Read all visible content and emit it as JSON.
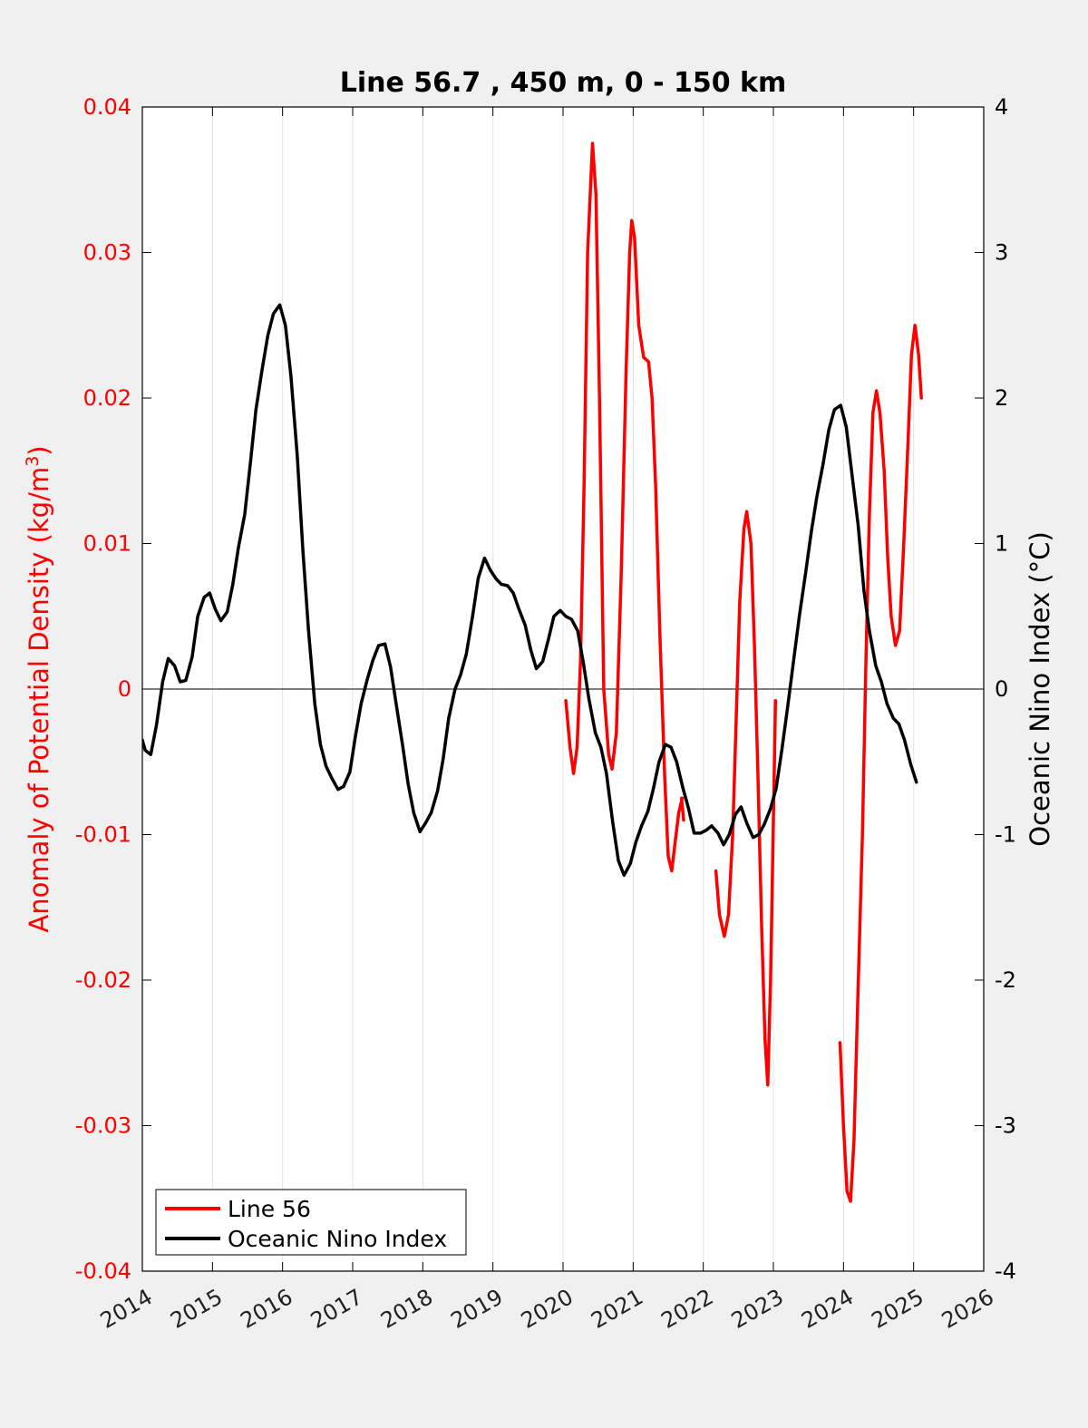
{
  "chart_data": {
    "type": "line",
    "title": "Line 56.7 , 450 m, 0 - 150 km",
    "ylabel_left": "Anomaly of Potential Density (kg/m",
    "ylabel_left_superscript": "3",
    "ylabel_left_close": ")",
    "ylabel_right": "Oceanic Nino Index (°C)",
    "xlim": [
      2014,
      2026
    ],
    "ylim_left": [
      -0.04,
      0.04
    ],
    "ylim_right": [
      -4,
      4
    ],
    "x_ticks": [
      2014,
      2015,
      2016,
      2017,
      2018,
      2019,
      2020,
      2021,
      2022,
      2023,
      2024,
      2025,
      2026
    ],
    "x_tick_labels": [
      "2014",
      "2015",
      "2016",
      "2017",
      "2018",
      "2019",
      "2020",
      "2021",
      "2022",
      "2023",
      "2024",
      "2025",
      "2026"
    ],
    "y_left_ticks": [
      -0.04,
      -0.03,
      -0.02,
      -0.01,
      0,
      0.01,
      0.02,
      0.03,
      0.04
    ],
    "y_left_tick_labels": [
      "-0.04",
      "-0.03",
      "-0.02",
      "-0.01",
      "0",
      "0.01",
      "0.02",
      "0.03",
      "0.04"
    ],
    "y_right_ticks": [
      -4,
      -3,
      -2,
      -1,
      0,
      1,
      2,
      3,
      4
    ],
    "y_right_tick_labels": [
      "-4",
      "-3",
      "-2",
      "-1",
      "0",
      "1",
      "2",
      "3",
      "4"
    ],
    "grid": "vertical",
    "legend_position": "bottom-left",
    "colors": {
      "line56": "#ff0000",
      "oni": "#000000",
      "left_axis": "#ff0000",
      "right_axis": "#000000"
    },
    "series": [
      {
        "name": "Line 56",
        "axis": "left",
        "segments": [
          [
            [
              2020.04,
              -0.0008
            ],
            [
              2020.1,
              -0.004
            ],
            [
              2020.15,
              -0.0058
            ],
            [
              2020.2,
              -0.004
            ],
            [
              2020.25,
              0.002
            ],
            [
              2020.3,
              0.014
            ],
            [
              2020.35,
              0.03
            ],
            [
              2020.42,
              0.0375
            ],
            [
              2020.47,
              0.034
            ],
            [
              2020.52,
              0.02
            ],
            [
              2020.58,
              0.0
            ],
            [
              2020.65,
              -0.0045
            ],
            [
              2020.7,
              -0.0055
            ],
            [
              2020.76,
              -0.003
            ],
            [
              2020.83,
              0.008
            ],
            [
              2020.9,
              0.022
            ],
            [
              2020.95,
              0.03
            ],
            [
              2020.98,
              0.0322
            ],
            [
              2021.02,
              0.031
            ],
            [
              2021.08,
              0.025
            ],
            [
              2021.15,
              0.0228
            ],
            [
              2021.22,
              0.0225
            ],
            [
              2021.27,
              0.02
            ],
            [
              2021.32,
              0.014
            ],
            [
              2021.38,
              0.004
            ],
            [
              2021.45,
              -0.006
            ],
            [
              2021.5,
              -0.0115
            ],
            [
              2021.55,
              -0.0125
            ],
            [
              2021.6,
              -0.0105
            ],
            [
              2021.65,
              -0.0085
            ],
            [
              2021.7,
              -0.0075
            ]
          ],
          [
            [
              2021.69,
              -0.0075
            ],
            [
              2021.72,
              -0.009
            ]
          ],
          [
            [
              2022.18,
              -0.0125
            ],
            [
              2022.23,
              -0.0155
            ],
            [
              2022.3,
              -0.017
            ],
            [
              2022.36,
              -0.0155
            ],
            [
              2022.42,
              -0.01
            ],
            [
              2022.47,
              -0.002
            ],
            [
              2022.52,
              0.006
            ],
            [
              2022.58,
              0.011
            ],
            [
              2022.62,
              0.0122
            ],
            [
              2022.68,
              0.01
            ],
            [
              2022.73,
              0.003
            ],
            [
              2022.78,
              -0.006
            ],
            [
              2022.83,
              -0.016
            ],
            [
              2022.88,
              -0.024
            ],
            [
              2022.92,
              -0.0272
            ],
            [
              2022.96,
              -0.02
            ],
            [
              2023.0,
              -0.009
            ],
            [
              2023.03,
              -0.0008
            ]
          ],
          [
            [
              2023.95,
              -0.0243
            ],
            [
              2024.0,
              -0.03
            ],
            [
              2024.05,
              -0.0345
            ],
            [
              2024.1,
              -0.0352
            ],
            [
              2024.15,
              -0.031
            ],
            [
              2024.2,
              -0.022
            ],
            [
              2024.27,
              -0.01
            ],
            [
              2024.32,
              0.002
            ],
            [
              2024.37,
              0.012
            ],
            [
              2024.42,
              0.019
            ],
            [
              2024.47,
              0.0205
            ],
            [
              2024.52,
              0.019
            ],
            [
              2024.58,
              0.015
            ],
            [
              2024.63,
              0.009
            ],
            [
              2024.68,
              0.005
            ],
            [
              2024.74,
              0.003
            ],
            [
              2024.8,
              0.004
            ],
            [
              2024.86,
              0.01
            ],
            [
              2024.92,
              0.017
            ],
            [
              2024.97,
              0.023
            ],
            [
              2025.02,
              0.025
            ],
            [
              2025.07,
              0.023
            ],
            [
              2025.11,
              0.02
            ]
          ]
        ]
      },
      {
        "name": "Oceanic Nino Index",
        "axis": "right",
        "segments": [
          [
            [
              2014.0,
              -0.35
            ],
            [
              2014.04,
              -0.42
            ],
            [
              2014.12,
              -0.45
            ],
            [
              2014.2,
              -0.25
            ],
            [
              2014.29,
              0.05
            ],
            [
              2014.37,
              0.21
            ],
            [
              2014.46,
              0.16
            ],
            [
              2014.54,
              0.05
            ],
            [
              2014.62,
              0.06
            ],
            [
              2014.71,
              0.22
            ],
            [
              2014.79,
              0.5
            ],
            [
              2014.88,
              0.63
            ],
            [
              2014.96,
              0.66
            ],
            [
              2015.04,
              0.55
            ],
            [
              2015.12,
              0.47
            ],
            [
              2015.21,
              0.53
            ],
            [
              2015.29,
              0.72
            ],
            [
              2015.37,
              0.97
            ],
            [
              2015.46,
              1.2
            ],
            [
              2015.54,
              1.55
            ],
            [
              2015.62,
              1.92
            ],
            [
              2015.71,
              2.2
            ],
            [
              2015.79,
              2.43
            ],
            [
              2015.87,
              2.58
            ],
            [
              2015.96,
              2.64
            ],
            [
              2016.04,
              2.5
            ],
            [
              2016.12,
              2.15
            ],
            [
              2016.21,
              1.6
            ],
            [
              2016.29,
              0.95
            ],
            [
              2016.37,
              0.4
            ],
            [
              2016.46,
              -0.1
            ],
            [
              2016.54,
              -0.38
            ],
            [
              2016.62,
              -0.53
            ],
            [
              2016.71,
              -0.62
            ],
            [
              2016.79,
              -0.69
            ],
            [
              2016.87,
              -0.67
            ],
            [
              2016.96,
              -0.57
            ],
            [
              2017.04,
              -0.32
            ],
            [
              2017.12,
              -0.1
            ],
            [
              2017.21,
              0.07
            ],
            [
              2017.29,
              0.2
            ],
            [
              2017.37,
              0.3
            ],
            [
              2017.46,
              0.31
            ],
            [
              2017.54,
              0.15
            ],
            [
              2017.62,
              -0.1
            ],
            [
              2017.71,
              -0.38
            ],
            [
              2017.79,
              -0.65
            ],
            [
              2017.87,
              -0.85
            ],
            [
              2017.96,
              -0.98
            ],
            [
              2018.04,
              -0.92
            ],
            [
              2018.12,
              -0.85
            ],
            [
              2018.21,
              -0.7
            ],
            [
              2018.29,
              -0.48
            ],
            [
              2018.37,
              -0.2
            ],
            [
              2018.46,
              0.0
            ],
            [
              2018.54,
              0.1
            ],
            [
              2018.62,
              0.24
            ],
            [
              2018.71,
              0.5
            ],
            [
              2018.79,
              0.76
            ],
            [
              2018.88,
              0.9
            ],
            [
              2018.96,
              0.82
            ],
            [
              2019.04,
              0.76
            ],
            [
              2019.12,
              0.72
            ],
            [
              2019.21,
              0.71
            ],
            [
              2019.29,
              0.66
            ],
            [
              2019.37,
              0.55
            ],
            [
              2019.46,
              0.44
            ],
            [
              2019.54,
              0.27
            ],
            [
              2019.62,
              0.14
            ],
            [
              2019.71,
              0.19
            ],
            [
              2019.79,
              0.34
            ],
            [
              2019.87,
              0.5
            ],
            [
              2019.96,
              0.54
            ],
            [
              2020.04,
              0.5
            ],
            [
              2020.12,
              0.48
            ],
            [
              2020.21,
              0.4
            ],
            [
              2020.29,
              0.18
            ],
            [
              2020.37,
              -0.07
            ],
            [
              2020.46,
              -0.3
            ],
            [
              2020.54,
              -0.4
            ],
            [
              2020.62,
              -0.58
            ],
            [
              2020.71,
              -0.92
            ],
            [
              2020.79,
              -1.18
            ],
            [
              2020.87,
              -1.28
            ],
            [
              2020.96,
              -1.2
            ],
            [
              2021.04,
              -1.05
            ],
            [
              2021.12,
              -0.94
            ],
            [
              2021.21,
              -0.84
            ],
            [
              2021.29,
              -0.68
            ],
            [
              2021.37,
              -0.5
            ],
            [
              2021.46,
              -0.38
            ],
            [
              2021.54,
              -0.4
            ],
            [
              2021.62,
              -0.5
            ],
            [
              2021.71,
              -0.68
            ],
            [
              2021.79,
              -0.82
            ],
            [
              2021.87,
              -0.99
            ],
            [
              2021.96,
              -0.99
            ],
            [
              2022.04,
              -0.97
            ],
            [
              2022.12,
              -0.94
            ],
            [
              2022.21,
              -0.99
            ],
            [
              2022.29,
              -1.07
            ],
            [
              2022.37,
              -1.0
            ],
            [
              2022.46,
              -0.86
            ],
            [
              2022.54,
              -0.81
            ],
            [
              2022.62,
              -0.92
            ],
            [
              2022.71,
              -1.02
            ],
            [
              2022.79,
              -1.0
            ],
            [
              2022.87,
              -0.93
            ],
            [
              2022.96,
              -0.82
            ],
            [
              2023.04,
              -0.68
            ],
            [
              2023.12,
              -0.42
            ],
            [
              2023.21,
              -0.1
            ],
            [
              2023.29,
              0.2
            ],
            [
              2023.37,
              0.5
            ],
            [
              2023.46,
              0.8
            ],
            [
              2023.54,
              1.08
            ],
            [
              2023.62,
              1.32
            ],
            [
              2023.71,
              1.55
            ],
            [
              2023.79,
              1.78
            ],
            [
              2023.87,
              1.92
            ],
            [
              2023.96,
              1.95
            ],
            [
              2024.04,
              1.8
            ],
            [
              2024.12,
              1.48
            ],
            [
              2024.21,
              1.12
            ],
            [
              2024.29,
              0.68
            ],
            [
              2024.37,
              0.4
            ],
            [
              2024.46,
              0.16
            ],
            [
              2024.54,
              0.05
            ],
            [
              2024.62,
              -0.1
            ],
            [
              2024.71,
              -0.2
            ],
            [
              2024.79,
              -0.24
            ],
            [
              2024.87,
              -0.35
            ],
            [
              2024.96,
              -0.52
            ],
            [
              2025.04,
              -0.64
            ]
          ]
        ]
      }
    ]
  }
}
